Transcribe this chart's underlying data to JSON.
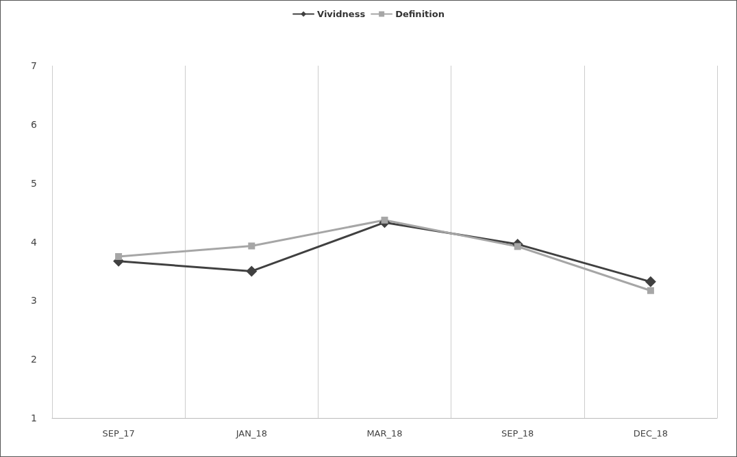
{
  "chart_data": {
    "type": "line",
    "categories": [
      "SEP_17",
      "JAN_18",
      "MAR_18",
      "SEP_18",
      "DEC_18"
    ],
    "series": [
      {
        "name": "Vividness",
        "color": "#404040",
        "marker": "diamond",
        "values": [
          3.67,
          3.5,
          4.33,
          3.96,
          3.32
        ]
      },
      {
        "name": "Definition",
        "color": "#a6a6a6",
        "marker": "square",
        "values": [
          3.75,
          3.93,
          4.37,
          3.92,
          3.17
        ]
      }
    ],
    "ylim": [
      1,
      7
    ],
    "yticks": [
      1,
      2,
      3,
      4,
      5,
      6,
      7
    ],
    "grid": "x",
    "legend": "top",
    "line_style": "solid"
  }
}
